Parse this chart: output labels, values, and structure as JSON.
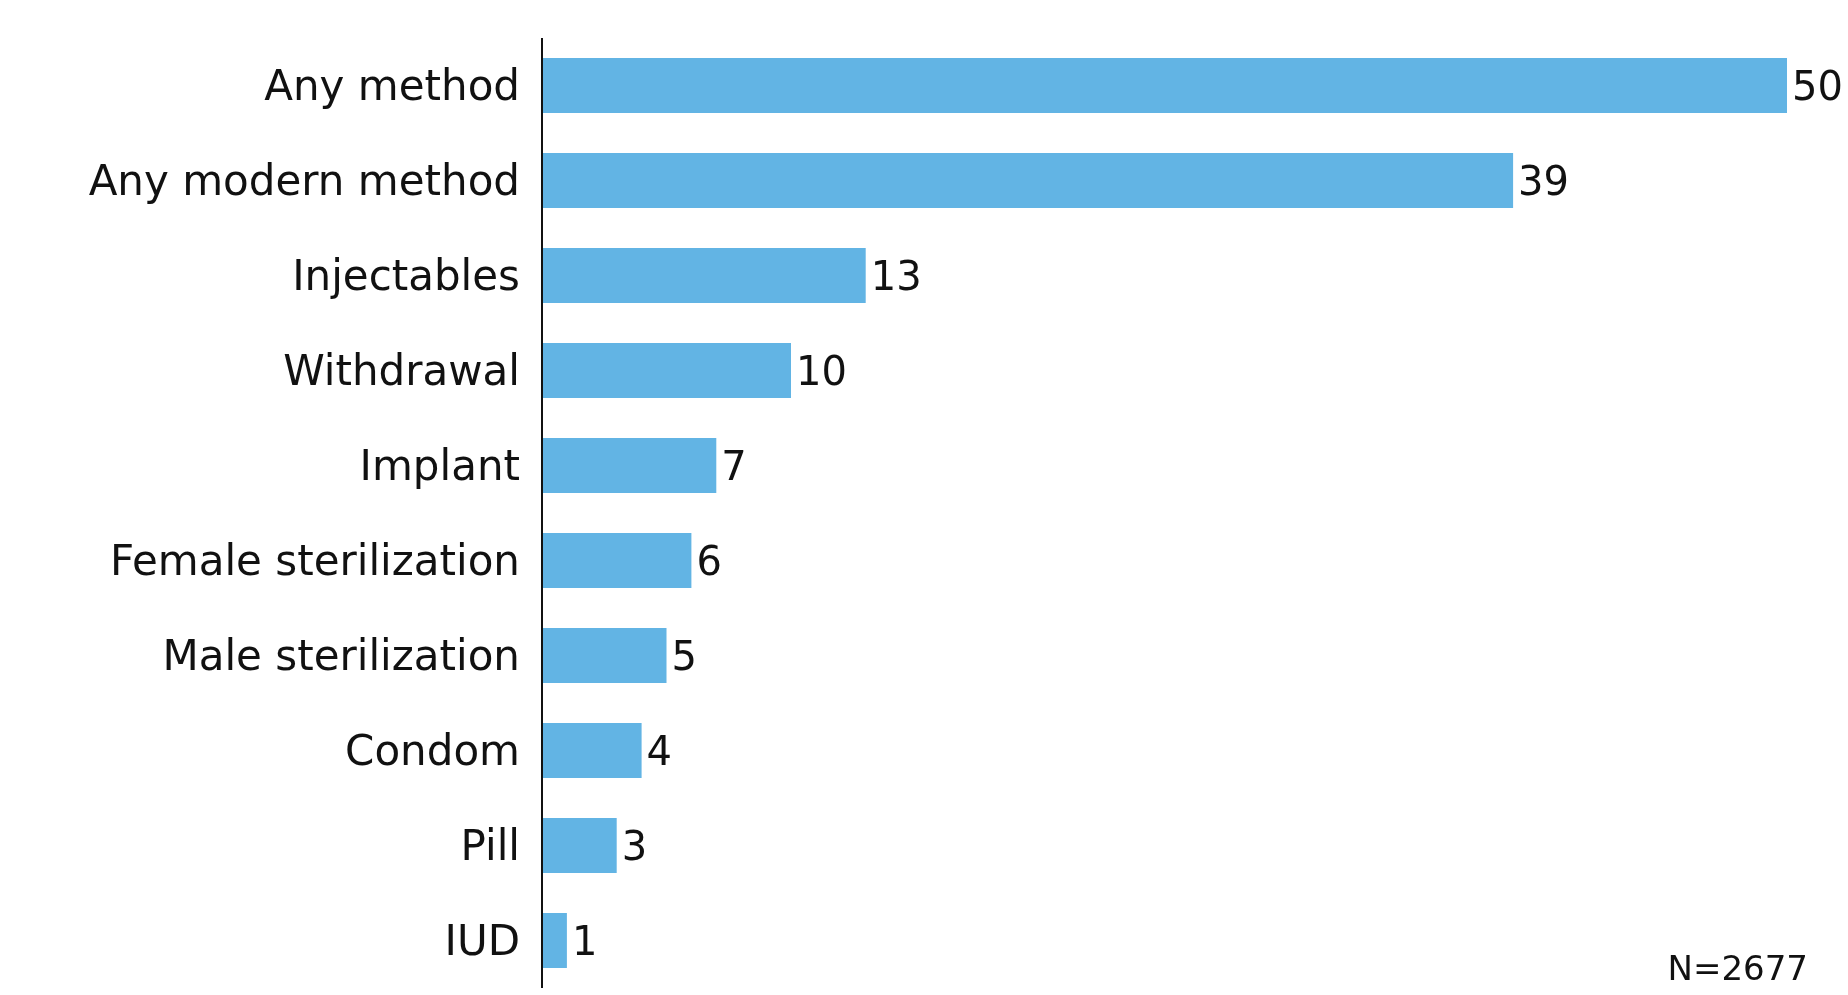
{
  "chart_data": {
    "type": "bar",
    "orientation": "horizontal",
    "categories": [
      "Any method",
      "Any modern method",
      "Injectables",
      "Withdrawal",
      "Implant",
      "Female sterilization",
      "Male sterilization",
      "Condom",
      "Pill",
      "IUD"
    ],
    "values": [
      50,
      39,
      13,
      10,
      7,
      6,
      5,
      4,
      3,
      1
    ],
    "color": "#62b4e4",
    "data_labels": true,
    "annotations": [
      "N=2677"
    ]
  }
}
